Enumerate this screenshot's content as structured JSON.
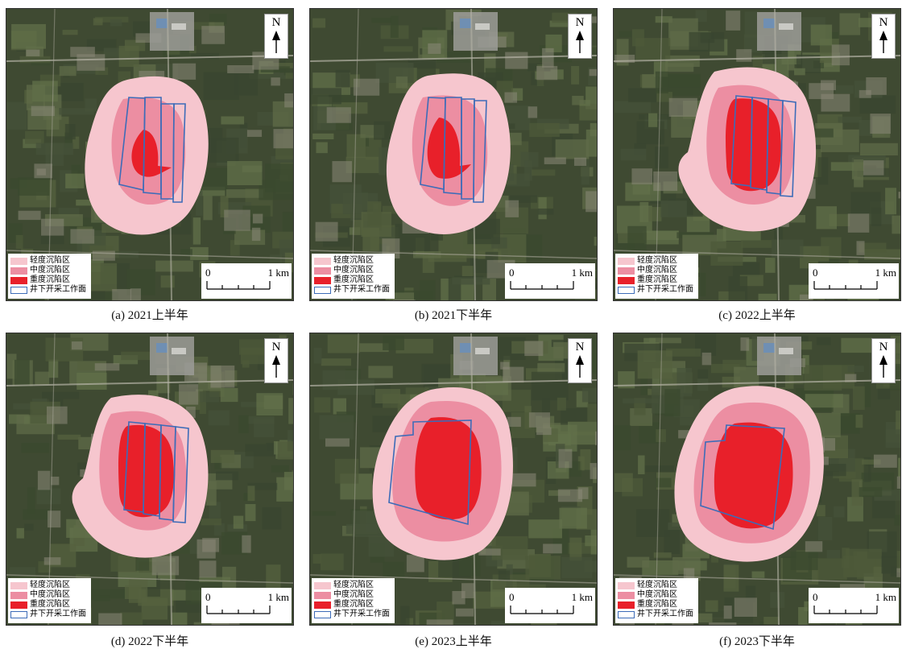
{
  "colors": {
    "light_zone": "#f6c6ce",
    "moderate_zone": "#ec8ea2",
    "severe_zone": "#e8202a",
    "workface_outline": "#3d6cb8",
    "satellite_base": "#3f4a32"
  },
  "north_arrow": {
    "label": "N",
    "icon": "north-arrow-icon"
  },
  "legend": [
    {
      "label": "轻度沉陷区",
      "color": "#f6c6ce",
      "kind": "fill"
    },
    {
      "label": "中度沉陷区",
      "color": "#ec8ea2",
      "kind": "fill"
    },
    {
      "label": "重度沉陷区",
      "color": "#e8202a",
      "kind": "fill"
    },
    {
      "label": "井下开采工作面",
      "color": "#3d6cb8",
      "kind": "outline"
    }
  ],
  "scale_bar": {
    "start": "0",
    "end": "1 km"
  },
  "panels": [
    {
      "caption": "(a) 2021上半年"
    },
    {
      "caption": "(b) 2021下半年"
    },
    {
      "caption": "(c) 2022上半年"
    },
    {
      "caption": "(d) 2022下半年"
    },
    {
      "caption": "(e) 2023上半年"
    },
    {
      "caption": "(f) 2023下半年"
    }
  ]
}
